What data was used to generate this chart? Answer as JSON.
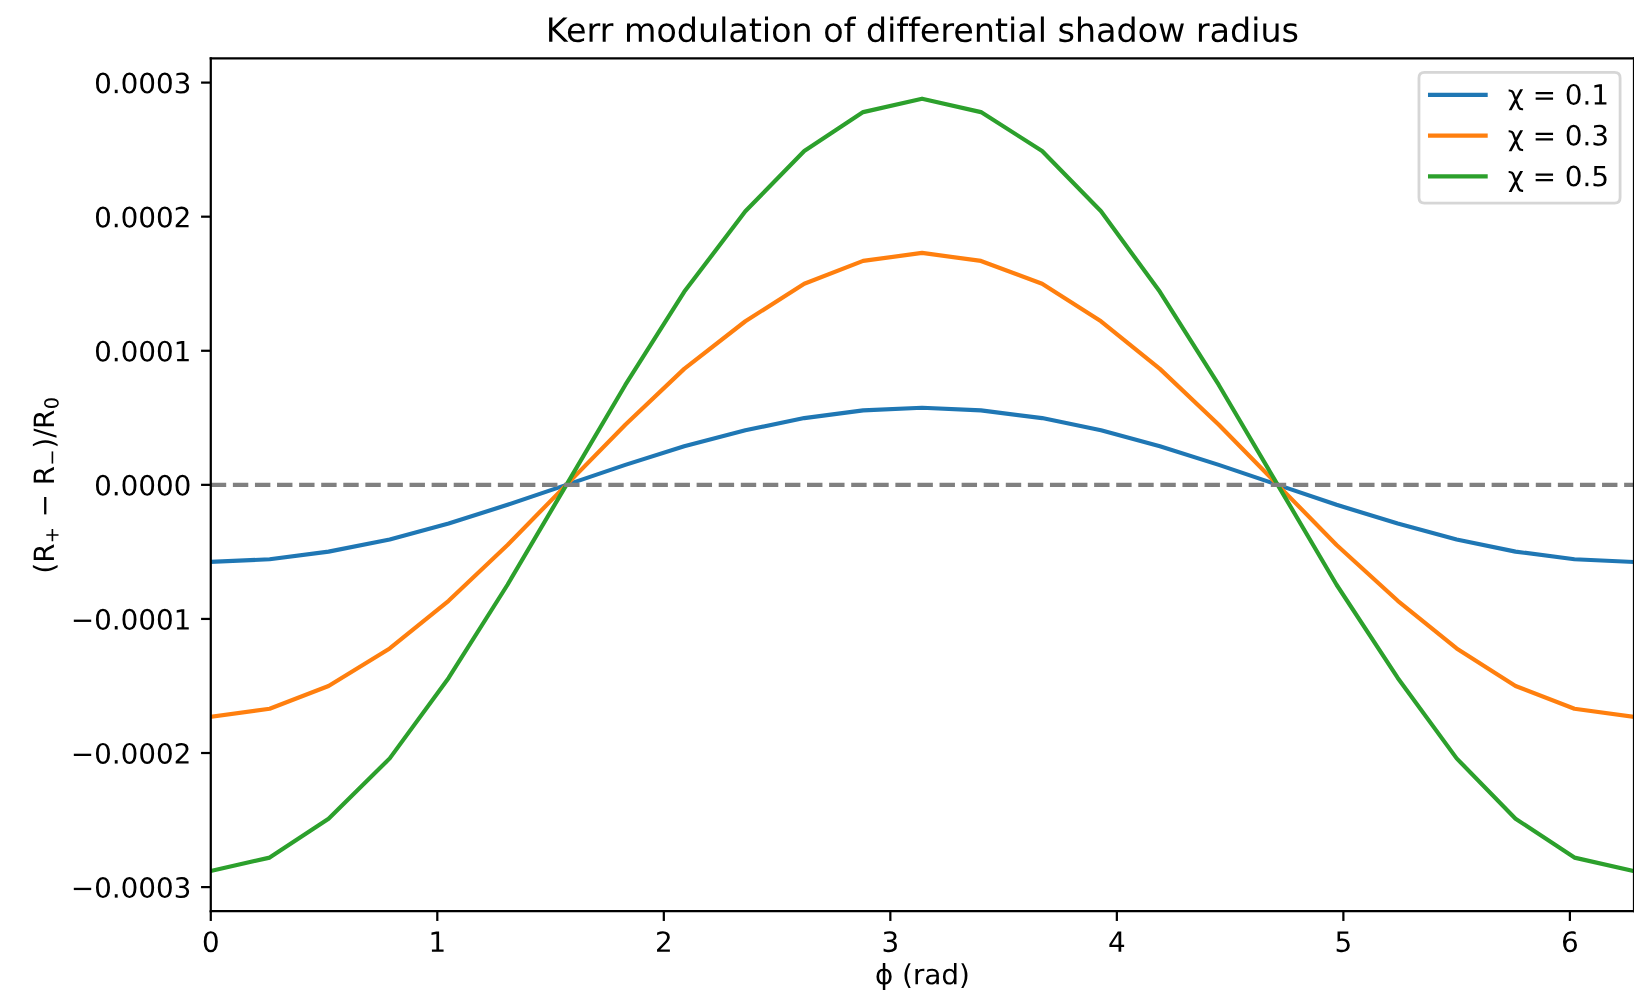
{
  "chart_data": {
    "type": "line",
    "title": "Kerr modulation of differential shadow radius",
    "xlabel": "ϕ (rad)",
    "ylabel": "(R$_{+}$ − R$_{−}$)/R$_{0}$",
    "x": [
      0,
      0.26,
      0.52,
      0.79,
      1.05,
      1.31,
      1.57,
      1.83,
      2.09,
      2.36,
      2.62,
      2.88,
      3.14,
      3.4,
      3.67,
      3.93,
      4.19,
      4.45,
      4.71,
      4.97,
      5.24,
      5.5,
      5.76,
      6.02,
      6.28
    ],
    "series": [
      {
        "name": "χ = 0.1",
        "color": "#1f77b4",
        "values": [
          -5.75e-05,
          -5.55e-05,
          -4.98e-05,
          -4.07e-05,
          -2.88e-05,
          -1.49e-05,
          0,
          1.49e-05,
          2.88e-05,
          4.07e-05,
          4.98e-05,
          5.55e-05,
          5.75e-05,
          5.55e-05,
          4.98e-05,
          4.07e-05,
          2.88e-05,
          1.49e-05,
          0,
          -1.49e-05,
          -2.88e-05,
          -4.07e-05,
          -4.98e-05,
          -5.55e-05,
          -5.75e-05
        ]
      },
      {
        "name": "χ = 0.3",
        "color": "#ff7f0e",
        "values": [
          -0.000173,
          -0.000167,
          -0.00015,
          -0.000122,
          -8.65e-05,
          -4.48e-05,
          0,
          4.48e-05,
          8.65e-05,
          0.000122,
          0.00015,
          0.000167,
          0.000173,
          0.000167,
          0.00015,
          0.000122,
          8.65e-05,
          4.48e-05,
          0,
          -4.48e-05,
          -8.65e-05,
          -0.000122,
          -0.00015,
          -0.000167,
          -0.000173
        ]
      },
      {
        "name": "χ = 0.5",
        "color": "#2ca02c",
        "values": [
          -0.000288,
          -0.000278,
          -0.000249,
          -0.000204,
          -0.000144,
          -7.45e-05,
          0,
          7.45e-05,
          0.000144,
          0.000204,
          0.000249,
          0.000278,
          0.000288,
          0.000278,
          0.000249,
          0.000204,
          0.000144,
          7.45e-05,
          0,
          -7.45e-05,
          -0.000144,
          -0.000204,
          -0.000249,
          -0.000278,
          -0.000288
        ]
      }
    ],
    "xlim": [
      0,
      6.283
    ],
    "ylim": [
      -0.000318,
      0.000318
    ],
    "xticks": [
      0,
      1,
      2,
      3,
      4,
      5,
      6
    ],
    "yticks": [
      {
        "value": -0.0003,
        "label": "−0.0003"
      },
      {
        "value": -0.0002,
        "label": "−0.0002"
      },
      {
        "value": -0.0001,
        "label": "−0.0001"
      },
      {
        "value": 0,
        "label": "0.0000"
      },
      {
        "value": 0.0001,
        "label": "0.0001"
      },
      {
        "value": 0.0002,
        "label": "0.0002"
      },
      {
        "value": 0.0003,
        "label": "0.0003"
      }
    ],
    "ref_lines": [
      {
        "axis": "y",
        "value": 0,
        "color": "#808080",
        "line_style": "dashed"
      }
    ],
    "legend": "top right",
    "grid": false,
    "line_style": "solid"
  }
}
